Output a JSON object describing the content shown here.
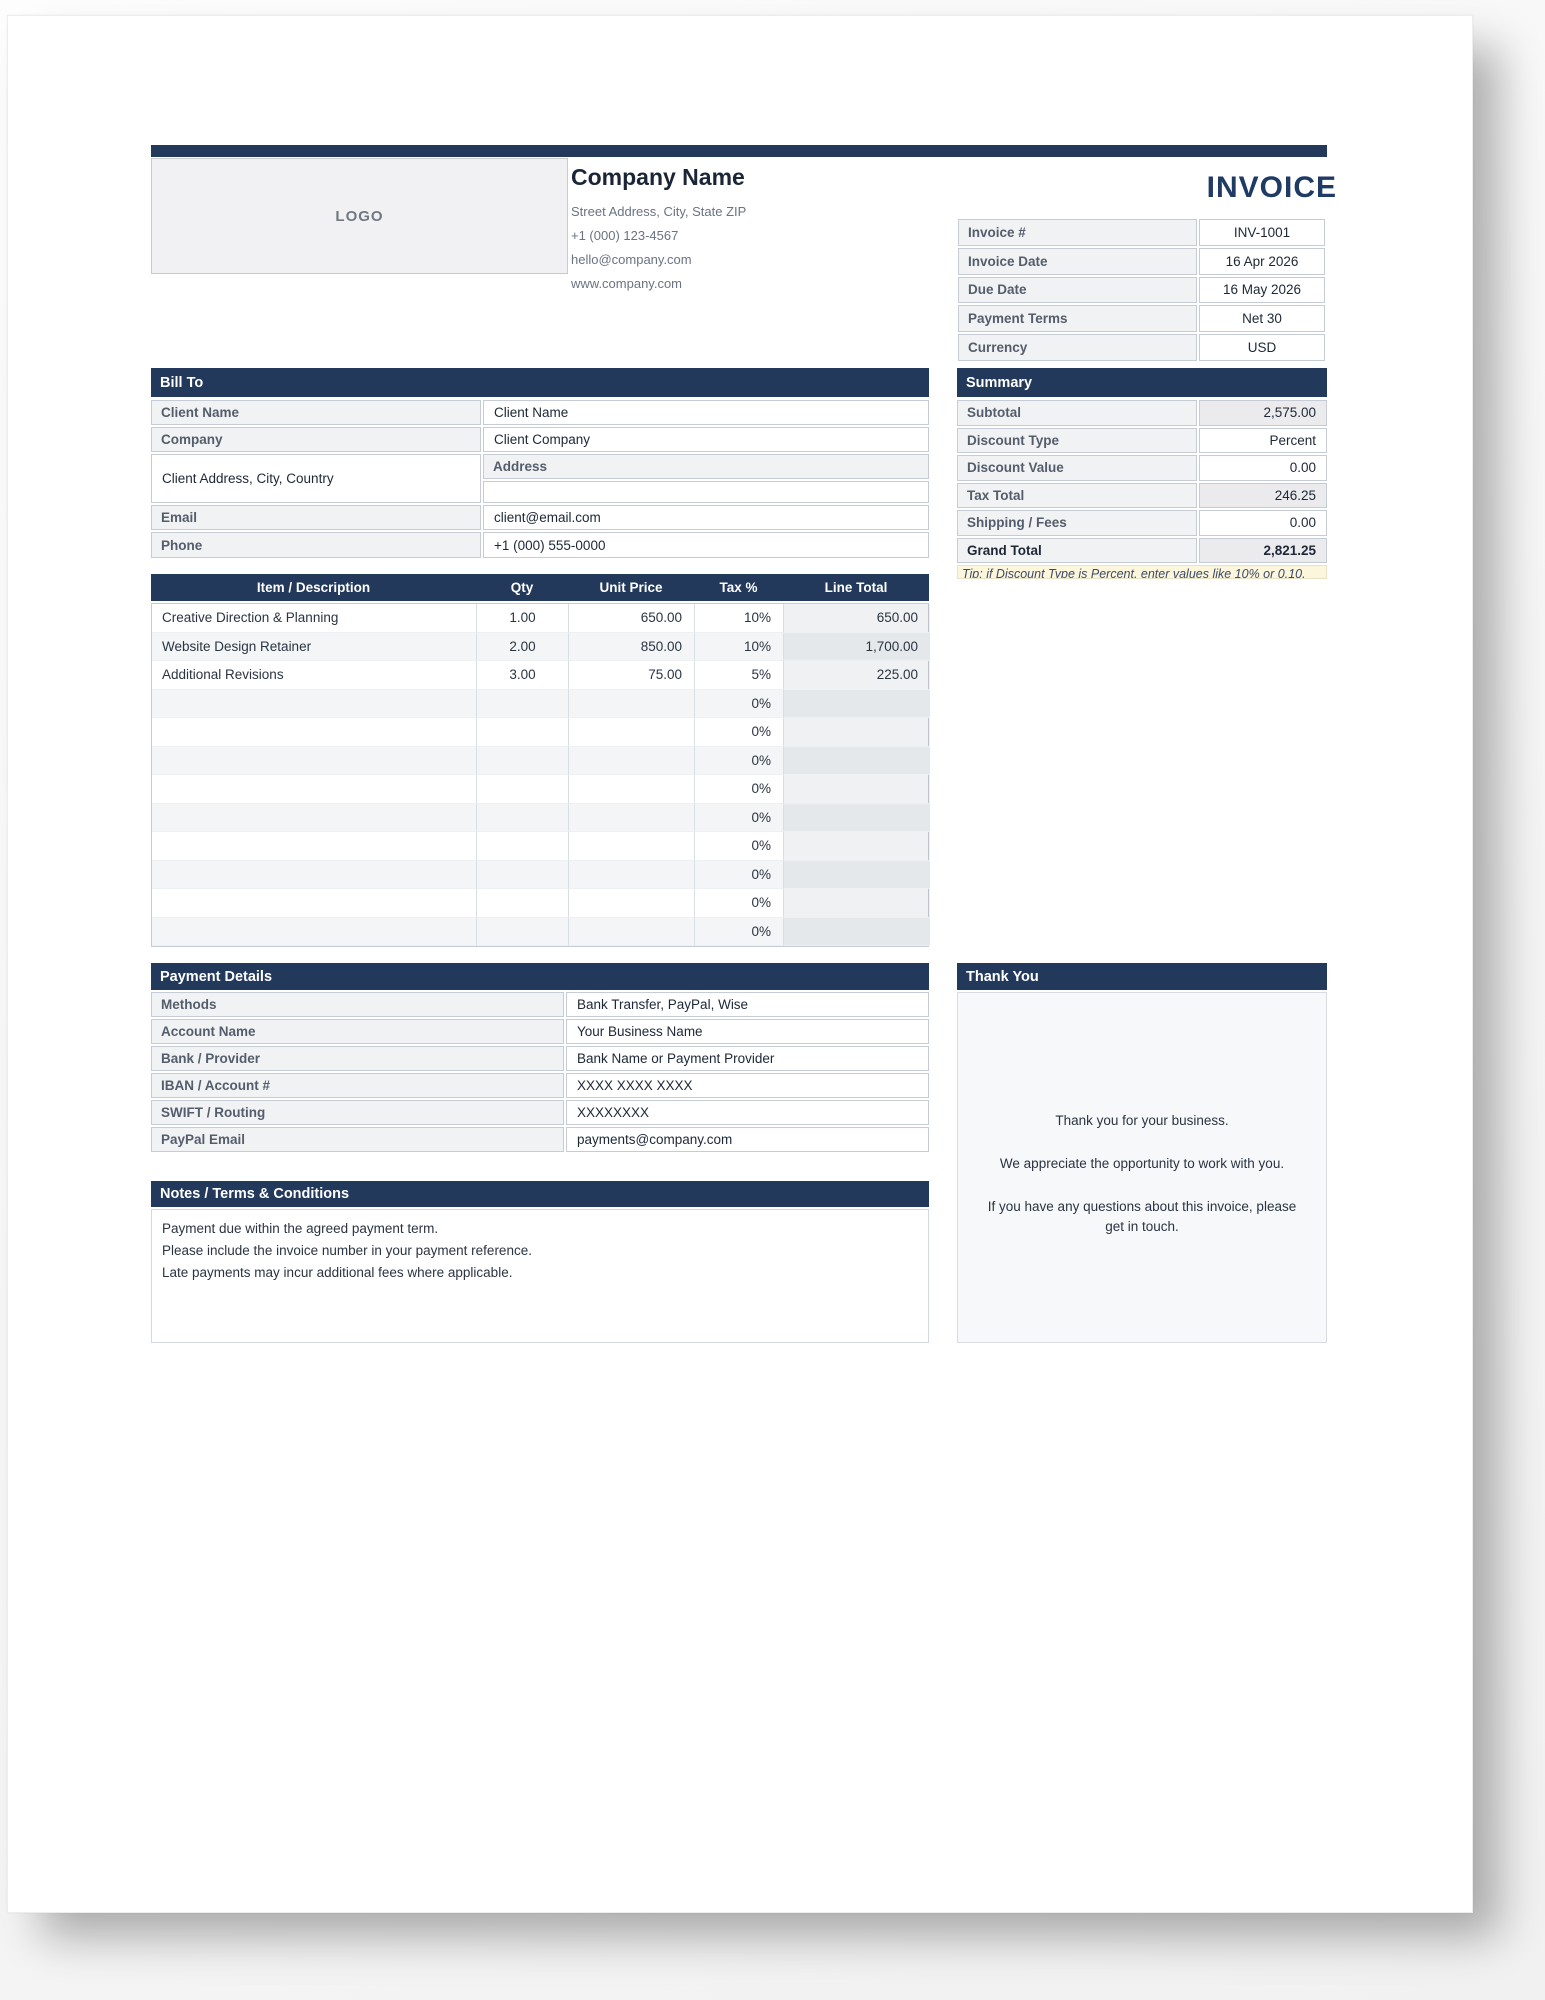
{
  "invoice_title": "INVOICE",
  "company": {
    "logo": "LOGO",
    "name": "Company Name",
    "address": "Street Address, City, State ZIP",
    "phone": "+1 (000) 123-4567",
    "email": "hello@company.com",
    "website": "www.company.com"
  },
  "meta": {
    "rows": [
      {
        "label": "Invoice #",
        "value": "INV-1001"
      },
      {
        "label": "Invoice Date",
        "value": "16 Apr 2026"
      },
      {
        "label": "Due Date",
        "value": "16 May 2026"
      },
      {
        "label": "Payment Terms",
        "value": "Net 30"
      },
      {
        "label": "Currency",
        "value": "USD"
      }
    ]
  },
  "bill_to": {
    "title": "Bill To",
    "client_name_label": "Client Name",
    "client_name": "Client Name",
    "company_label": "Company",
    "company": "Client Company",
    "address_label": "Address",
    "address": "Client Address, City, Country",
    "email_label": "Email",
    "email": "client@email.com",
    "phone_label": "Phone",
    "phone": "+1 (000) 555-0000"
  },
  "summary": {
    "title": "Summary",
    "rows": [
      {
        "label": "Subtotal",
        "value": "2,575.00",
        "calc": true,
        "total": false
      },
      {
        "label": "Discount Type",
        "value": "Percent",
        "calc": false,
        "total": false
      },
      {
        "label": "Discount Value",
        "value": "0.00",
        "calc": false,
        "total": false
      },
      {
        "label": "Tax Total",
        "value": "246.25",
        "calc": true,
        "total": false
      },
      {
        "label": "Shipping / Fees",
        "value": "0.00",
        "calc": false,
        "total": false
      },
      {
        "label": "Grand Total",
        "value": "2,821.25",
        "calc": true,
        "total": true
      }
    ],
    "tip": "Tip: if Discount Type is Percent, enter values like 10% or 0.10."
  },
  "items": {
    "headers": {
      "desc": "Item / Description",
      "qty": "Qty",
      "unit": "Unit Price",
      "tax": "Tax %",
      "total": "Line Total"
    },
    "rows": [
      {
        "desc": "Creative Direction & Planning",
        "qty": "1.00",
        "unit": "650.00",
        "tax": "10%",
        "total": "650.00"
      },
      {
        "desc": "Website Design Retainer",
        "qty": "2.00",
        "unit": "850.00",
        "tax": "10%",
        "total": "1,700.00"
      },
      {
        "desc": "Additional Revisions",
        "qty": "3.00",
        "unit": "75.00",
        "tax": "5%",
        "total": "225.00"
      },
      {
        "desc": "",
        "qty": "",
        "unit": "",
        "tax": "0%",
        "total": ""
      },
      {
        "desc": "",
        "qty": "",
        "unit": "",
        "tax": "0%",
        "total": ""
      },
      {
        "desc": "",
        "qty": "",
        "unit": "",
        "tax": "0%",
        "total": ""
      },
      {
        "desc": "",
        "qty": "",
        "unit": "",
        "tax": "0%",
        "total": ""
      },
      {
        "desc": "",
        "qty": "",
        "unit": "",
        "tax": "0%",
        "total": ""
      },
      {
        "desc": "",
        "qty": "",
        "unit": "",
        "tax": "0%",
        "total": ""
      },
      {
        "desc": "",
        "qty": "",
        "unit": "",
        "tax": "0%",
        "total": ""
      },
      {
        "desc": "",
        "qty": "",
        "unit": "",
        "tax": "0%",
        "total": ""
      },
      {
        "desc": "",
        "qty": "",
        "unit": "",
        "tax": "0%",
        "total": ""
      }
    ]
  },
  "payment": {
    "title": "Payment Details",
    "rows": [
      {
        "label": "Methods",
        "value": "Bank Transfer, PayPal, Wise"
      },
      {
        "label": "Account Name",
        "value": "Your Business Name"
      },
      {
        "label": "Bank / Provider",
        "value": "Bank Name or Payment Provider"
      },
      {
        "label": "IBAN / Account #",
        "value": "XXXX XXXX XXXX"
      },
      {
        "label": "SWIFT / Routing",
        "value": "XXXXXXXX"
      },
      {
        "label": "PayPal Email",
        "value": "payments@company.com"
      }
    ]
  },
  "thank_you": {
    "title": "Thank You",
    "lines": [
      "Thank you for your business.",
      "We appreciate the opportunity to work with you.",
      "If you have any questions about this invoice, please get in touch."
    ]
  },
  "notes": {
    "title": "Notes / Terms & Conditions",
    "lines": [
      "Payment due within the agreed payment term.",
      "Please include the invoice number in your payment reference.",
      "Late payments may incur additional fees where applicable."
    ]
  },
  "colors": {
    "navy": "#22395C",
    "band": "#F3F5F7",
    "label_bg": "#F1F2F4",
    "calc_bg": "#EBEBEE",
    "tip_bg": "#FCF6DC"
  }
}
